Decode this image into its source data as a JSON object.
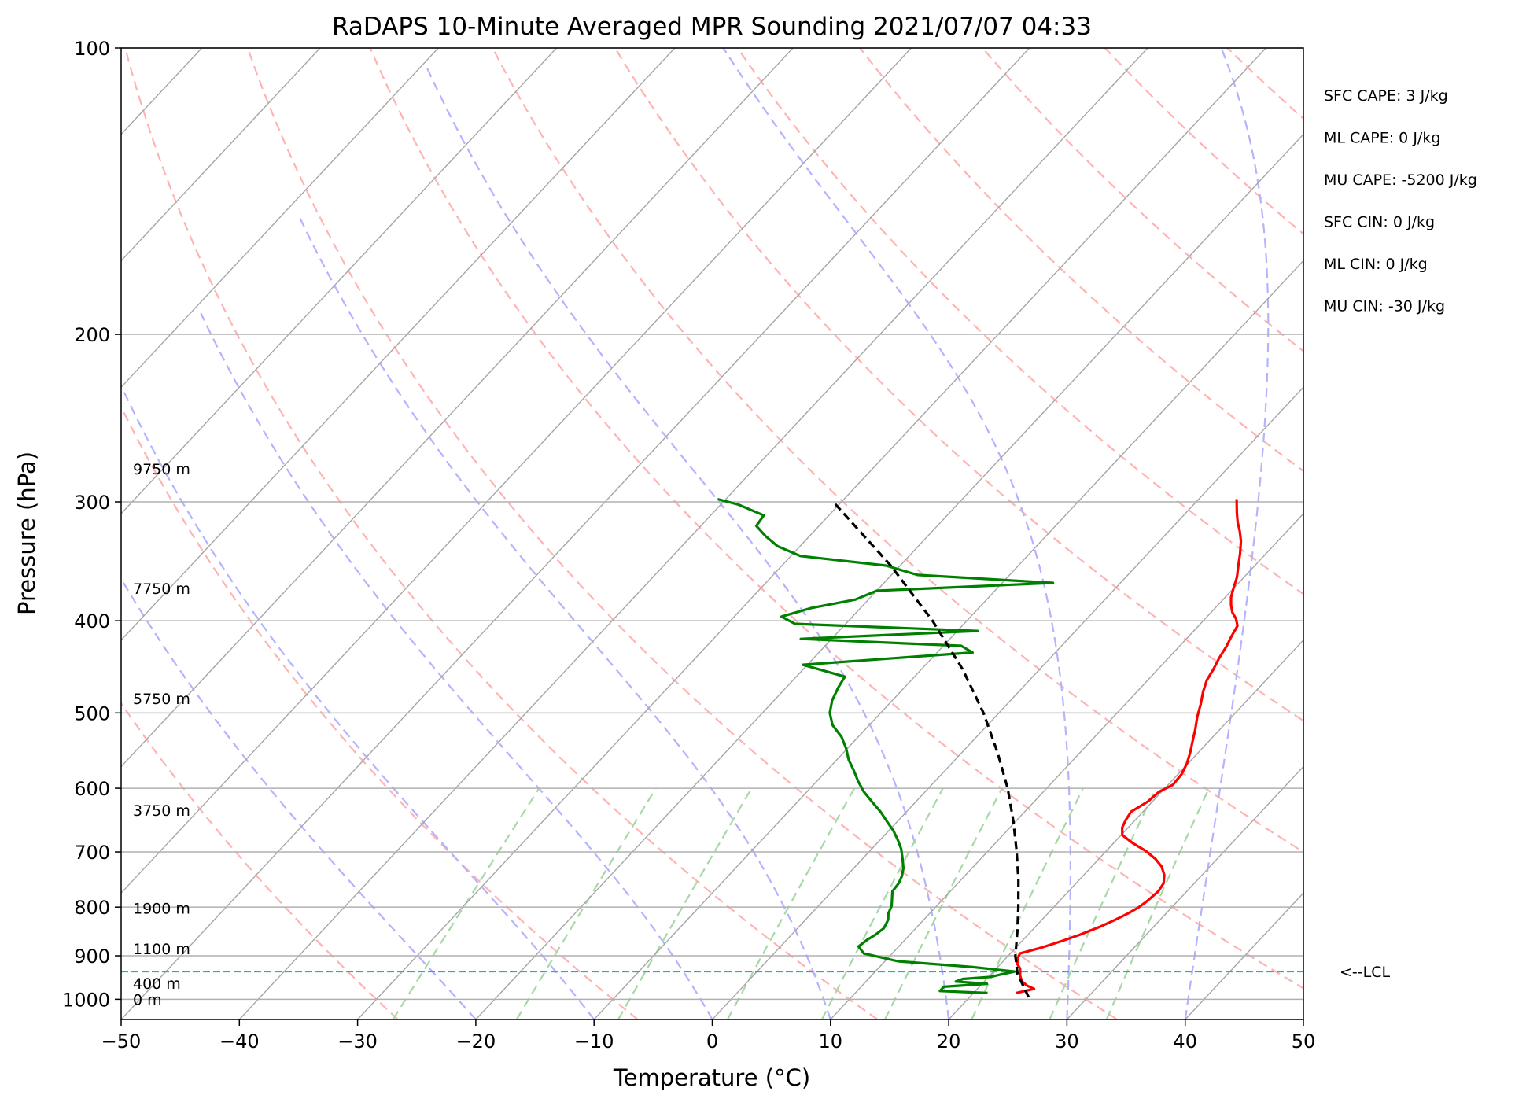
{
  "chart_data": {
    "type": "skew-t log-p sounding",
    "title": "RaDAPS 10-Minute Averaged MPR Sounding 2021/07/07 04:33",
    "xlabel": "Temperature (°C)",
    "ylabel": "Pressure (hPa)",
    "xlim": [
      -50,
      50
    ],
    "ylim": [
      1050,
      100
    ],
    "x_ticks": [
      -50,
      -40,
      -30,
      -20,
      -10,
      0,
      10,
      20,
      30,
      40,
      50
    ],
    "x_tick_labels": [
      "−50",
      "−40",
      "−30",
      "−20",
      "−10",
      "0",
      "10",
      "20",
      "30",
      "40",
      "50"
    ],
    "y_ticks": [
      1000,
      900,
      800,
      700,
      600,
      500,
      400,
      300,
      200,
      100
    ],
    "y_tick_labels": [
      "1000",
      "900",
      "800",
      "700",
      "600",
      "500",
      "400",
      "300",
      "200",
      "100"
    ],
    "y_scale": "log",
    "grid": true,
    "series": [
      {
        "role": "temperature",
        "color": "#ff0000",
        "pressure": [
          985,
          975,
          968,
          958,
          945,
          928,
          918,
          905,
          895,
          882,
          868,
          855,
          840,
          825,
          812,
          800,
          790,
          770,
          755,
          740,
          725,
          712,
          698,
          685,
          672,
          660,
          648,
          635,
          620,
          605,
          595,
          580,
          565,
          550,
          535,
          520,
          505,
          490,
          475,
          462,
          450,
          438,
          426,
          415,
          405,
          398,
          392,
          385,
          378,
          370,
          360,
          350,
          340,
          330,
          322,
          315,
          308,
          298
        ],
        "temp": [
          23.6,
          24.8,
          24.0,
          23.2,
          22.6,
          22.0,
          21.4,
          21.0,
          20.8,
          22.2,
          23.4,
          24.4,
          25.4,
          26.2,
          26.8,
          27.2,
          27.4,
          27.6,
          27.4,
          26.8,
          25.9,
          24.8,
          23.3,
          21.6,
          20.1,
          19.5,
          19.2,
          19.0,
          19.6,
          19.8,
          20.4,
          20.3,
          19.9,
          19.3,
          18.6,
          17.9,
          17.1,
          16.4,
          15.6,
          15.0,
          14.7,
          14.3,
          14.0,
          13.6,
          13.3,
          12.6,
          11.8,
          11.1,
          10.5,
          10.0,
          9.4,
          8.6,
          7.8,
          6.9,
          6.0,
          5.1,
          4.3,
          3.2
        ],
        "label": ""
      },
      {
        "role": "dewpoint",
        "color": "#008000",
        "pressure": [
          985,
          980,
          970,
          963,
          958,
          952,
          947,
          942,
          935,
          925,
          912,
          895,
          880,
          866,
          855,
          842,
          825,
          812,
          798,
          785,
          770,
          755,
          742,
          728,
          712,
          695,
          680,
          665,
          650,
          635,
          620,
          605,
          590,
          575,
          560,
          545,
          530,
          515,
          500,
          485,
          470,
          458,
          445,
          432,
          425,
          418,
          410,
          403,
          396,
          388,
          380,
          372,
          365,
          358,
          350,
          342,
          334,
          326,
          318,
          310,
          302,
          298
        ],
        "temp": [
          21.2,
          17.0,
          17.0,
          20.4,
          17.6,
          18.0,
          20.2,
          20.8,
          21.8,
          17.9,
          11.1,
          7.6,
          6.6,
          6.8,
          7.1,
          7.3,
          7.0,
          6.5,
          6.2,
          5.7,
          5.1,
          5.0,
          4.7,
          4.2,
          3.4,
          2.5,
          1.5,
          0.4,
          -0.9,
          -2.2,
          -3.7,
          -5.2,
          -6.5,
          -7.7,
          -9.0,
          -10.1,
          -11.4,
          -13.1,
          -14.3,
          -15.1,
          -15.6,
          -15.9,
          -20.4,
          -7.0,
          -8.5,
          -22.6,
          -8.3,
          -24.3,
          -26.0,
          -24.2,
          -21.1,
          -20.0,
          -5.7,
          -17.8,
          -21.2,
          -29.2,
          -31.9,
          -33.7,
          -35.3,
          -35.5,
          -38.5,
          -40.7
        ],
        "label": ""
      },
      {
        "role": "parcel profile",
        "color": "#000000",
        "pressure": [
          995,
          940,
          900,
          850,
          800,
          750,
          700,
          650,
          600,
          550,
          500,
          450,
          400,
          350,
          300
        ],
        "temp": [
          25.0,
          22.2,
          20.6,
          18.9,
          17.0,
          14.9,
          12.5,
          9.8,
          6.7,
          3.0,
          -1.3,
          -6.5,
          -12.9,
          -20.8,
          -30.7
        ],
        "label": ""
      }
    ],
    "height_labels": [
      {
        "label": "0 m",
        "pressure": 1000
      },
      {
        "label": "400 m",
        "pressure": 962
      },
      {
        "label": "1100 m",
        "pressure": 885
      },
      {
        "label": "1900 m",
        "pressure": 802
      },
      {
        "label": "3750 m",
        "pressure": 633
      },
      {
        "label": "5750 m",
        "pressure": 483
      },
      {
        "label": "7750 m",
        "pressure": 370
      },
      {
        "label": "9750 m",
        "pressure": 277
      }
    ],
    "lcl": {
      "label": "<--LCL",
      "pressure": 935,
      "color": "#00bfbf"
    },
    "stats": [
      "SFC CAPE: 3 J/kg",
      "ML CAPE: 0 J/kg",
      "MU CAPE: -5200 J/kg",
      "SFC CIN: 0 J/kg",
      "ML CIN: 0 J/kg",
      "MU CIN: -30 J/kg"
    ],
    "colors": {
      "isotherm": "#a6a6a6",
      "dry_adiabat": "#ffb3b3",
      "moist_adiabat": "#b3b3ff",
      "mixing_ratio": "#a6d9a6"
    }
  }
}
